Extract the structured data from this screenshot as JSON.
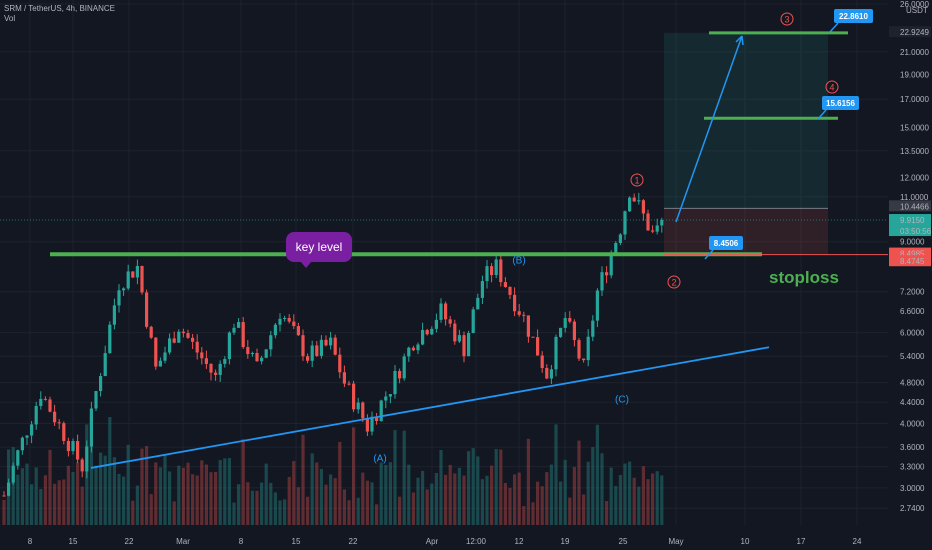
{
  "header": {
    "symbol_line": "SRM / TetherUS, 4h, BINANCE",
    "vol_label": "Vol"
  },
  "colors": {
    "background": "#131722",
    "up": "#26a69a",
    "down": "#ef5350",
    "key_level": "#4caf50",
    "trendline": "#2196f3",
    "key_label_bg": "#7b1fa2",
    "price_tag": "#2196f3",
    "stop_tag": "#ef5350"
  },
  "chart_data": {
    "type": "candlestick",
    "scale": "log",
    "ylim": [
      2.6,
      26
    ],
    "y_ticks": [
      "26.0000",
      "22.9249",
      "21.0000",
      "19.0000",
      "17.0000",
      "15.0000",
      "13.5000",
      "12.0000",
      "11.0000",
      "10.4466",
      "9.9150",
      "9.0000",
      "8.4985",
      "8.4745",
      "7.2000",
      "6.6000",
      "6.0000",
      "5.4000",
      "4.8000",
      "4.4000",
      "4.0000",
      "3.6000",
      "3.3000",
      "3.0000",
      "2.7400"
    ],
    "y_axis_unit": "USDT",
    "x_ticks": [
      "8",
      "15",
      "22",
      "Mar",
      "8",
      "15",
      "22",
      "Apr",
      "12:00",
      "12",
      "19",
      "25",
      "May",
      "10",
      "17",
      "24"
    ],
    "current_price": "9.9150",
    "countdown": "03:50:56",
    "key_level": {
      "price": 8.4745,
      "label": "key level"
    },
    "stoploss": {
      "price": 8.4985,
      "label": "stoploss"
    },
    "entry_tag": "8.4506",
    "targets": [
      {
        "price": 22.861,
        "label": "22.8610"
      },
      {
        "price": 15.6156,
        "label": "15.6156"
      }
    ],
    "target_axis_label": "22.9249",
    "position_top": "10.4466",
    "trendline": {
      "from": {
        "date": "Feb 17",
        "price": 3.28
      },
      "to": {
        "date": "May 11",
        "price": 5.62
      }
    },
    "wave_labels": [
      "(A)",
      "(B)",
      "(C)",
      "1",
      "2",
      "3",
      "4"
    ],
    "price_path": [
      [
        2.9,
        0
      ],
      [
        3.5,
        3
      ],
      [
        4.6,
        8
      ],
      [
        3.3,
        17
      ],
      [
        4.6,
        20
      ],
      [
        7.5,
        25
      ],
      [
        8.05,
        29
      ],
      [
        5.1,
        33
      ],
      [
        6.2,
        38
      ],
      [
        4.9,
        46
      ],
      [
        6.3,
        50
      ],
      [
        5.1,
        55
      ],
      [
        6.6,
        60
      ],
      [
        5.4,
        66
      ],
      [
        5.7,
        71
      ],
      [
        4.8,
        74
      ],
      [
        3.95,
        79
      ],
      [
        4.7,
        84
      ],
      [
        5.8,
        89
      ],
      [
        6.6,
        95
      ],
      [
        5.6,
        100
      ],
      [
        7.6,
        104
      ],
      [
        8.05,
        107
      ],
      [
        6.4,
        113
      ],
      [
        5.0,
        118
      ],
      [
        6.4,
        122
      ],
      [
        5.1,
        126
      ],
      [
        7.2,
        129
      ],
      [
        9.6,
        134
      ],
      [
        11.4,
        136
      ],
      [
        9.3,
        141
      ],
      [
        9.9,
        144
      ]
    ]
  }
}
